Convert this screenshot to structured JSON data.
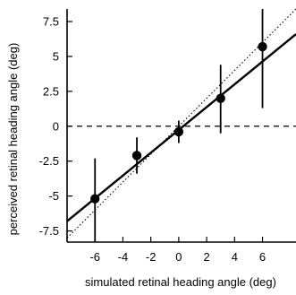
{
  "chart_data": {
    "type": "scatter",
    "title": "",
    "xlabel": "simulated retinal heading angle (deg)",
    "ylabel": "perceived retinal heading angle (deg)",
    "xlim": [
      -8,
      8.4
    ],
    "ylim": [
      -8.3,
      8.4
    ],
    "xticks": [
      -6,
      -4,
      -2,
      0,
      2,
      4,
      6
    ],
    "xtick_labels": [
      "-6",
      "-4",
      "-2",
      "0",
      "2",
      "4",
      "6"
    ],
    "yticks": [
      -7.5,
      -5,
      -2.5,
      0,
      2.5,
      5,
      7.5
    ],
    "ytick_labels": [
      "-7.5",
      "-5",
      "-2.5",
      "0",
      "2.5",
      "5",
      "7.5"
    ],
    "grid": false,
    "series": [
      {
        "kind": "points_with_error_bars",
        "x": [
          -6,
          -3,
          0,
          3,
          6
        ],
        "y": [
          -5.2,
          -2.1,
          -0.4,
          2.0,
          5.7
        ],
        "err_low": [
          -8.3,
          -3.4,
          -1.2,
          -0.5,
          1.3
        ],
        "err_high": [
          -2.3,
          -0.8,
          0.4,
          4.4,
          8.4
        ]
      },
      {
        "kind": "fit_line",
        "style": "solid",
        "x": [
          -8,
          8.4
        ],
        "y": [
          -6.8,
          6.6
        ]
      },
      {
        "kind": "identity_line",
        "style": "dotted",
        "x": [
          -8,
          8.4
        ],
        "y": [
          -8,
          8.4
        ]
      },
      {
        "kind": "reference_line",
        "style": "dashed",
        "y": 0
      }
    ]
  }
}
